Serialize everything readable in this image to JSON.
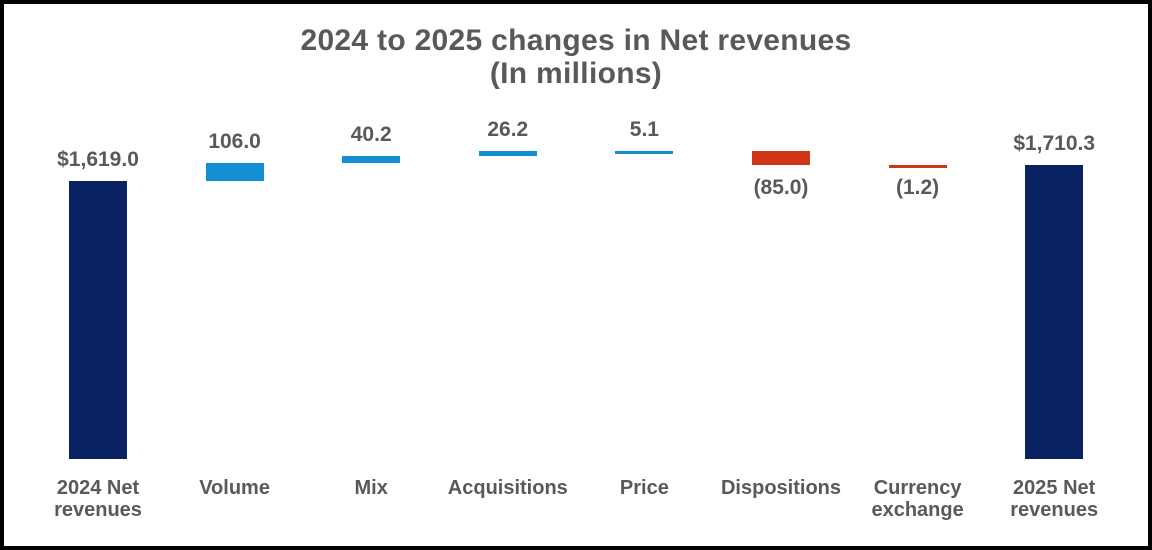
{
  "chart_data": {
    "type": "bar",
    "subtype": "waterfall",
    "title": "2024 to 2025 changes in Net revenues",
    "subtitle": "(In millions)",
    "categories": [
      "2024 Net\nrevenues",
      "Volume",
      "Mix",
      "Acquisitions",
      "Price",
      "Dispositions",
      "Currency\nexchange",
      "2025 Net\nrevenues"
    ],
    "values": [
      1619.0,
      106.0,
      40.2,
      26.2,
      5.1,
      -85.0,
      -1.2,
      1710.3
    ],
    "value_labels": [
      "$1,619.0",
      "106.0",
      "40.2",
      "26.2",
      "5.1",
      "(85.0)",
      "(1.2)",
      "$1,710.3"
    ],
    "roles": [
      "total",
      "increase",
      "increase",
      "increase",
      "increase",
      "decrease",
      "decrease",
      "total"
    ],
    "units": "millions",
    "baseline": 0,
    "ylim": [
      0,
      1800
    ],
    "grid": false,
    "legend": false,
    "axes_visible": false,
    "colors": {
      "total": "#0a2264",
      "increase": "#1390d4",
      "decrease": "#d2341a",
      "label": "#595959"
    }
  }
}
